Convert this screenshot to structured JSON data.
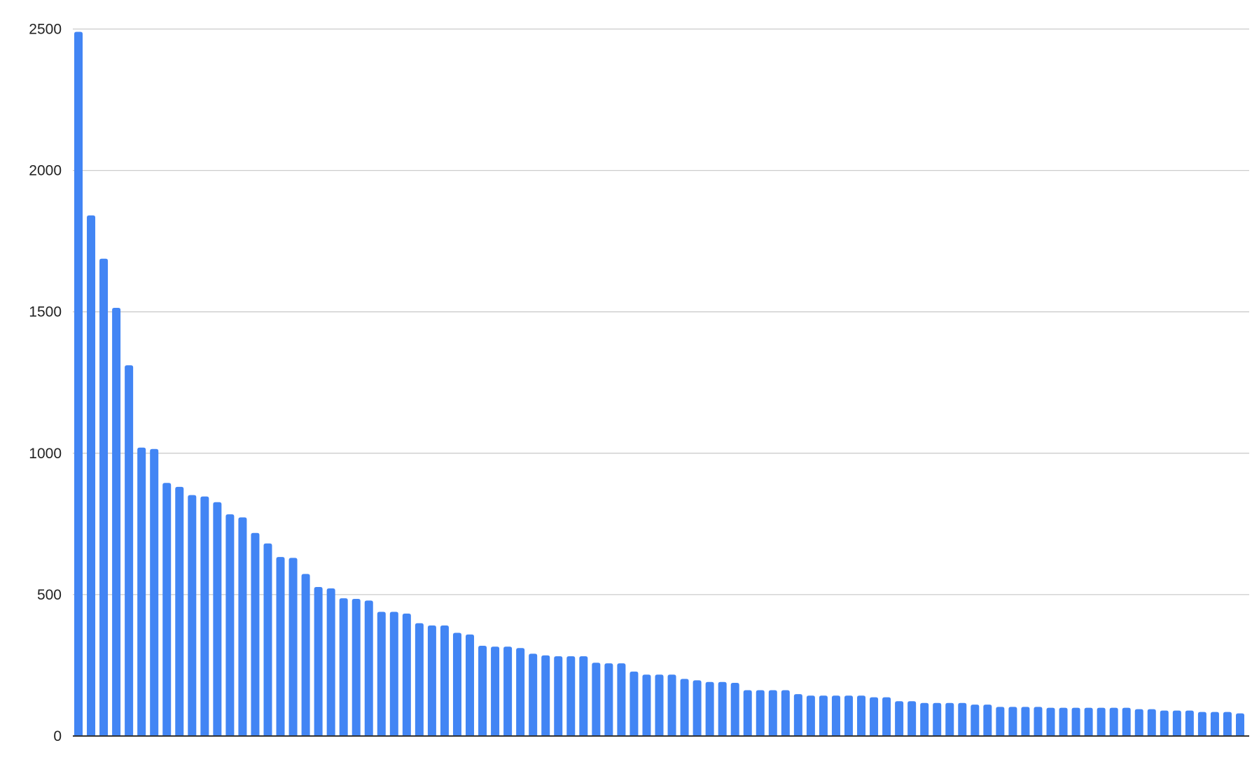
{
  "chart_data": {
    "type": "bar",
    "title": "",
    "xlabel": "",
    "ylabel": "",
    "ylim": [
      0,
      2500
    ],
    "yticks": [
      "0",
      "500",
      "1000",
      "1500",
      "2000",
      "2500"
    ],
    "grid": true,
    "legend": "none",
    "bar_color": "#4285f4",
    "values": [
      2490,
      1841,
      1688,
      1514,
      1311,
      1020,
      1015,
      895,
      881,
      852,
      847,
      827,
      784,
      773,
      718,
      681,
      633,
      630,
      573,
      527,
      522,
      487,
      485,
      479,
      439,
      439,
      433,
      399,
      391,
      391,
      365,
      359,
      319,
      316,
      316,
      311,
      291,
      285,
      282,
      282,
      282,
      259,
      257,
      257,
      228,
      217,
      217,
      217,
      202,
      197,
      191,
      191,
      188,
      162,
      162,
      162,
      162,
      148,
      143,
      143,
      143,
      143,
      143,
      137,
      137,
      123,
      123,
      117,
      117,
      117,
      117,
      111,
      111,
      103,
      103,
      103,
      103,
      100,
      100,
      100,
      100,
      100,
      100,
      100,
      95,
      95,
      90,
      90,
      90,
      85,
      85,
      85,
      80
    ]
  }
}
